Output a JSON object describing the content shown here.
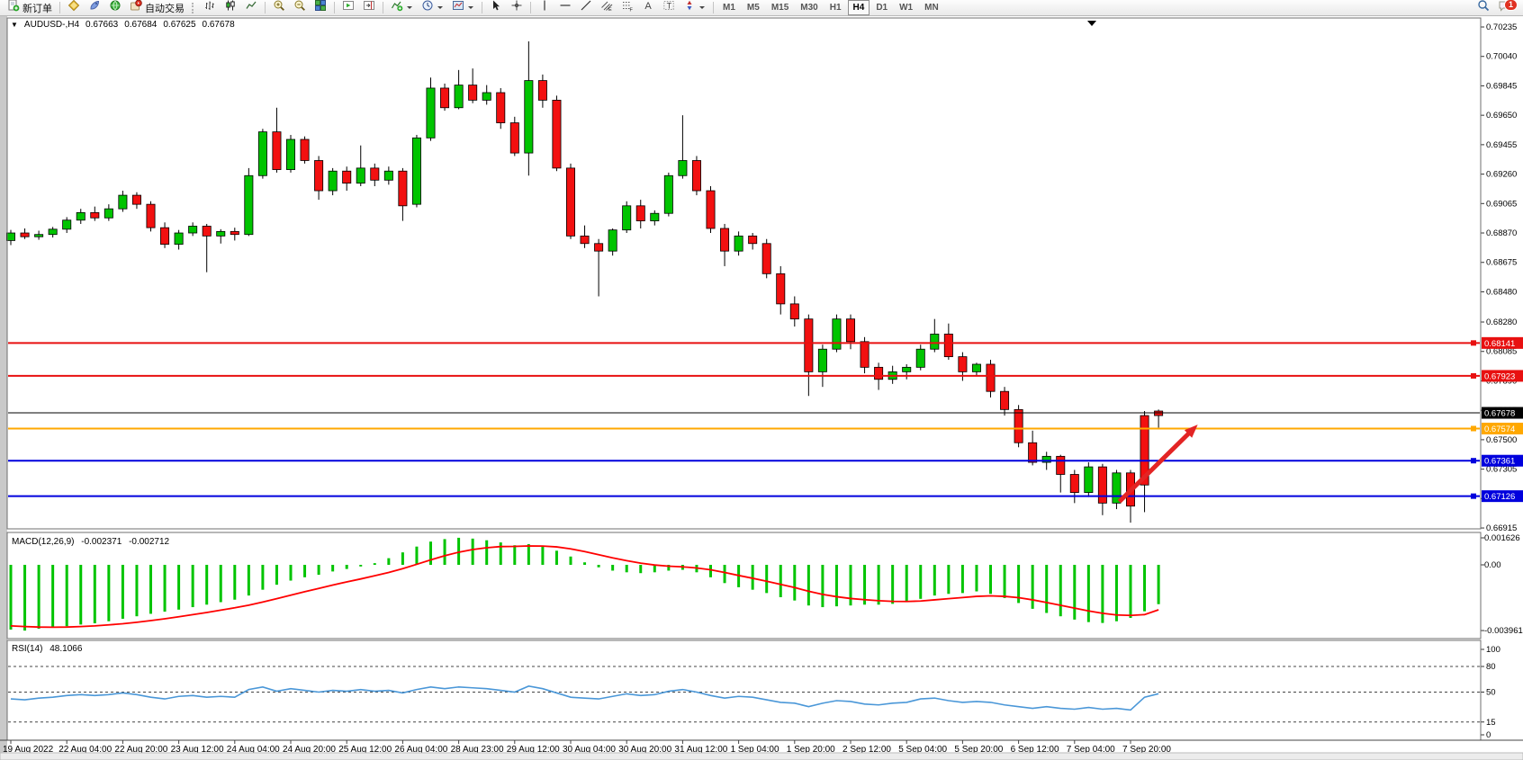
{
  "toolbar": {
    "new_order_label": "新订单",
    "auto_trading_label": "自动交易",
    "timeframes": [
      "M1",
      "M5",
      "M15",
      "M30",
      "H1",
      "H4",
      "D1",
      "W1",
      "MN"
    ],
    "active_timeframe": "H4",
    "notification_count": "1"
  },
  "chart_header": {
    "symbol_period": "AUDUSD-,H4",
    "open": "0.67663",
    "high": "0.67684",
    "low": "0.67625",
    "close": "0.67678"
  },
  "macd_panel": {
    "label": "MACD(12,26,9)",
    "value_main": "-0.002371",
    "value_signal": "-0.002712"
  },
  "rsi_panel": {
    "label": "RSI(14)",
    "value": "48.1066"
  },
  "chart_data": {
    "type": "candlestick",
    "symbol": "AUDUSD-",
    "timeframe": "H4",
    "ohlc_current": {
      "open": 0.67663,
      "high": 0.67684,
      "low": 0.67625,
      "close": 0.67678
    },
    "bid_price": 0.67678,
    "price_axis": {
      "ticks": [
        0.70235,
        0.7004,
        0.69845,
        0.6965,
        0.69455,
        0.6926,
        0.69065,
        0.6887,
        0.68675,
        0.6848,
        0.6828,
        0.68085,
        0.6789,
        0.67695,
        0.675,
        0.67305,
        0.6711,
        0.66915
      ],
      "min": 0.66915,
      "max": 0.70235
    },
    "horizontal_lines": [
      {
        "price": 0.68141,
        "label": "0.68141",
        "color": "#e81010"
      },
      {
        "price": 0.67923,
        "label": "0.67923",
        "color": "#e81010"
      },
      {
        "price": 0.67574,
        "label": "0.67574",
        "color": "#ffa800"
      },
      {
        "price": 0.67361,
        "label": "0.67361",
        "color": "#0000dd"
      },
      {
        "price": 0.67126,
        "label": "0.67126",
        "color": "#0000dd"
      }
    ],
    "candles": [
      [
        0.6882,
        0.6889,
        0.6879,
        0.6887
      ],
      [
        0.6887,
        0.689,
        0.6883,
        0.68845
      ],
      [
        0.68845,
        0.68885,
        0.68825,
        0.6886
      ],
      [
        0.6886,
        0.6891,
        0.6884,
        0.68895
      ],
      [
        0.68895,
        0.68975,
        0.6887,
        0.68955
      ],
      [
        0.68955,
        0.6903,
        0.6893,
        0.69005
      ],
      [
        0.69005,
        0.69045,
        0.6895,
        0.6897
      ],
      [
        0.6897,
        0.6906,
        0.6895,
        0.6903
      ],
      [
        0.6903,
        0.6915,
        0.6901,
        0.6912
      ],
      [
        0.6912,
        0.6914,
        0.6903,
        0.6906
      ],
      [
        0.6906,
        0.6908,
        0.6888,
        0.68905
      ],
      [
        0.68905,
        0.6894,
        0.6877,
        0.68795
      ],
      [
        0.68795,
        0.6889,
        0.6876,
        0.6887
      ],
      [
        0.6887,
        0.6894,
        0.6885,
        0.68915
      ],
      [
        0.68915,
        0.6893,
        0.6861,
        0.6885
      ],
      [
        0.6885,
        0.68895,
        0.688,
        0.6888
      ],
      [
        0.6888,
        0.68905,
        0.6882,
        0.6886
      ],
      [
        0.6886,
        0.693,
        0.6885,
        0.6925
      ],
      [
        0.6925,
        0.6956,
        0.6923,
        0.6954
      ],
      [
        0.6954,
        0.697,
        0.6927,
        0.6929
      ],
      [
        0.6929,
        0.6952,
        0.6927,
        0.6949
      ],
      [
        0.6949,
        0.6951,
        0.6933,
        0.6935
      ],
      [
        0.6935,
        0.6938,
        0.6909,
        0.6915
      ],
      [
        0.6915,
        0.693,
        0.6912,
        0.6928
      ],
      [
        0.6928,
        0.6931,
        0.6915,
        0.692
      ],
      [
        0.692,
        0.6945,
        0.6918,
        0.693
      ],
      [
        0.693,
        0.6933,
        0.6918,
        0.6922
      ],
      [
        0.6922,
        0.6931,
        0.6919,
        0.6928
      ],
      [
        0.6928,
        0.693,
        0.6895,
        0.6905
      ],
      [
        0.6906,
        0.6952,
        0.6904,
        0.695
      ],
      [
        0.695,
        0.699,
        0.6948,
        0.6983
      ],
      [
        0.6983,
        0.6986,
        0.6968,
        0.697
      ],
      [
        0.697,
        0.6995,
        0.6969,
        0.6985
      ],
      [
        0.6985,
        0.6996,
        0.6973,
        0.6975
      ],
      [
        0.6975,
        0.6985,
        0.6972,
        0.698
      ],
      [
        0.698,
        0.6983,
        0.6956,
        0.696
      ],
      [
        0.696,
        0.6964,
        0.6938,
        0.694
      ],
      [
        0.694,
        0.7014,
        0.6925,
        0.6988
      ],
      [
        0.6988,
        0.6992,
        0.697,
        0.6975
      ],
      [
        0.6975,
        0.6978,
        0.6928,
        0.693
      ],
      [
        0.693,
        0.6933,
        0.6883,
        0.6885
      ],
      [
        0.6885,
        0.6892,
        0.6877,
        0.688
      ],
      [
        0.688,
        0.6883,
        0.6845,
        0.6875
      ],
      [
        0.6875,
        0.689,
        0.6872,
        0.6889
      ],
      [
        0.6889,
        0.6908,
        0.6887,
        0.6905
      ],
      [
        0.6905,
        0.6909,
        0.689,
        0.6895
      ],
      [
        0.6895,
        0.6902,
        0.6892,
        0.69
      ],
      [
        0.69,
        0.6927,
        0.6898,
        0.6925
      ],
      [
        0.6925,
        0.6965,
        0.6923,
        0.6935
      ],
      [
        0.6935,
        0.6938,
        0.6912,
        0.6915
      ],
      [
        0.6915,
        0.6918,
        0.6887,
        0.689
      ],
      [
        0.689,
        0.6893,
        0.6865,
        0.6875
      ],
      [
        0.6875,
        0.6888,
        0.6872,
        0.6885
      ],
      [
        0.6885,
        0.6887,
        0.6876,
        0.688
      ],
      [
        0.688,
        0.6883,
        0.6857,
        0.686
      ],
      [
        0.686,
        0.6865,
        0.6833,
        0.684
      ],
      [
        0.684,
        0.6845,
        0.6825,
        0.683
      ],
      [
        0.683,
        0.6833,
        0.6779,
        0.6795
      ],
      [
        0.6795,
        0.6813,
        0.6785,
        0.681
      ],
      [
        0.681,
        0.6833,
        0.6808,
        0.683
      ],
      [
        0.683,
        0.6833,
        0.681,
        0.6815
      ],
      [
        0.6815,
        0.6818,
        0.6794,
        0.6798
      ],
      [
        0.6798,
        0.6801,
        0.6783,
        0.679
      ],
      [
        0.679,
        0.6799,
        0.6787,
        0.6795
      ],
      [
        0.6795,
        0.68,
        0.679,
        0.6798
      ],
      [
        0.6798,
        0.6813,
        0.6796,
        0.681
      ],
      [
        0.681,
        0.683,
        0.6808,
        0.682
      ],
      [
        0.682,
        0.6827,
        0.6803,
        0.6805
      ],
      [
        0.6805,
        0.6808,
        0.6789,
        0.6795
      ],
      [
        0.6795,
        0.6801,
        0.6792,
        0.68
      ],
      [
        0.68,
        0.6803,
        0.6778,
        0.6782
      ],
      [
        0.6782,
        0.6785,
        0.6766,
        0.677
      ],
      [
        0.677,
        0.6773,
        0.6745,
        0.6748
      ],
      [
        0.6748,
        0.6756,
        0.6733,
        0.6735
      ],
      [
        0.6735,
        0.6742,
        0.673,
        0.6739
      ],
      [
        0.6739,
        0.674,
        0.6715,
        0.6727
      ],
      [
        0.6727,
        0.673,
        0.6708,
        0.6715
      ],
      [
        0.6715,
        0.6735,
        0.6712,
        0.6732
      ],
      [
        0.6732,
        0.6734,
        0.67,
        0.6708
      ],
      [
        0.6708,
        0.673,
        0.6704,
        0.6728
      ],
      [
        0.6728,
        0.673,
        0.6695,
        0.6706
      ],
      [
        0.6766,
        0.6769,
        0.6702,
        0.672
      ],
      [
        0.6769,
        0.677,
        0.6758,
        0.6766
      ]
    ],
    "time_labels": [
      "19 Aug 2022",
      "22 Aug 04:00",
      "22 Aug 20:00",
      "23 Aug 12:00",
      "24 Aug 04:00",
      "24 Aug 20:00",
      "25 Aug 12:00",
      "26 Aug 04:00",
      "28 Aug 23:00",
      "29 Aug 12:00",
      "30 Aug 04:00",
      "30 Aug 20:00",
      "31 Aug 12:00",
      "1 Sep 04:00",
      "1 Sep 20:00",
      "2 Sep 12:00",
      "5 Sep 04:00",
      "5 Sep 20:00",
      "6 Sep 12:00",
      "7 Sep 04:00",
      "7 Sep 20:00"
    ],
    "label_step": 4,
    "macd": {
      "params": "12,26,9",
      "histogram": [
        -0.0039,
        -0.00396,
        -0.00385,
        -0.00378,
        -0.0037,
        -0.0036,
        -0.00352,
        -0.0034,
        -0.00325,
        -0.0031,
        -0.00295,
        -0.00282,
        -0.0027,
        -0.00255,
        -0.0024,
        -0.00225,
        -0.0021,
        -0.00185,
        -0.0015,
        -0.0012,
        -0.00095,
        -0.00075,
        -0.0006,
        -0.0004,
        -0.00025,
        -0.0001,
        0.0001,
        0.0004,
        0.00075,
        0.0011,
        0.0014,
        0.00155,
        0.00163,
        0.00158,
        0.00148,
        0.00135,
        0.00118,
        0.00125,
        0.0011,
        0.00085,
        0.0005,
        0.00015,
        -0.00015,
        -0.00035,
        -0.00045,
        -0.0005,
        -0.00045,
        -0.00035,
        -0.0003,
        -0.00045,
        -0.00075,
        -0.0011,
        -0.00135,
        -0.0015,
        -0.0017,
        -0.00195,
        -0.00215,
        -0.00245,
        -0.00255,
        -0.0025,
        -0.00245,
        -0.0024,
        -0.0024,
        -0.00235,
        -0.00225,
        -0.00205,
        -0.00185,
        -0.00175,
        -0.0017,
        -0.0016,
        -0.00175,
        -0.002,
        -0.0023,
        -0.00265,
        -0.0029,
        -0.0031,
        -0.0033,
        -0.00345,
        -0.0035,
        -0.0034,
        -0.0032,
        -0.0028,
        -0.00237
      ],
      "signal": [
        -0.00368,
        -0.00372,
        -0.00375,
        -0.00376,
        -0.00375,
        -0.00372,
        -0.00368,
        -0.00362,
        -0.00355,
        -0.00346,
        -0.00336,
        -0.00325,
        -0.00313,
        -0.003,
        -0.00287,
        -0.00273,
        -0.00259,
        -0.00243,
        -0.00224,
        -0.00204,
        -0.00183,
        -0.00162,
        -0.00142,
        -0.00122,
        -0.00103,
        -0.00085,
        -0.00066,
        -0.00046,
        -0.00023,
        3e-05,
        0.0003,
        0.00055,
        0.00076,
        0.00092,
        0.00103,
        0.0011,
        0.00111,
        0.00114,
        0.00113,
        0.00108,
        0.00096,
        0.0008,
        0.00061,
        0.00042,
        0.00025,
        0.0001,
        -1e-05,
        -8e-05,
        -0.00012,
        -0.00019,
        -0.0003,
        -0.00046,
        -0.00064,
        -0.00081,
        -0.00099,
        -0.00118,
        -0.00137,
        -0.00159,
        -0.00178,
        -0.00192,
        -0.00203,
        -0.0021,
        -0.00216,
        -0.0022,
        -0.00221,
        -0.00218,
        -0.00211,
        -0.00204,
        -0.00197,
        -0.0019,
        -0.00187,
        -0.0019,
        -0.00198,
        -0.00211,
        -0.00227,
        -0.00244,
        -0.00261,
        -0.00278,
        -0.00292,
        -0.00302,
        -0.00305,
        -0.003,
        -0.00271
      ],
      "scale_labels": [
        {
          "v": 0.001626,
          "t": "0.001626"
        },
        {
          "v": 0,
          "t": "0.00"
        },
        {
          "v": -0.003961,
          "t": "-0.003961"
        }
      ],
      "colors": {
        "histogram": "#00c400",
        "signal": "#ff0000"
      }
    },
    "rsi": {
      "period": 14,
      "values": [
        42,
        41,
        43,
        44,
        46,
        47,
        46,
        47,
        49,
        47,
        44,
        42,
        45,
        46,
        44,
        45,
        44,
        53,
        56,
        51,
        54,
        52,
        50,
        52,
        51,
        53,
        51,
        52,
        49,
        53,
        56,
        54,
        56,
        55,
        54,
        52,
        50,
        57,
        54,
        49,
        44,
        43,
        42,
        45,
        48,
        46,
        47,
        51,
        53,
        50,
        46,
        43,
        45,
        44,
        41,
        38,
        37,
        33,
        37,
        40,
        39,
        36,
        35,
        37,
        38,
        42,
        43,
        40,
        38,
        39,
        38,
        35,
        33,
        31,
        33,
        31,
        30,
        32,
        30,
        31,
        29,
        44,
        48.1
      ],
      "levels": [
        100,
        80,
        50,
        15,
        0
      ],
      "dashed_levels": [
        80,
        50,
        15
      ],
      "color": "#4a97d8"
    },
    "trend_arrow": {
      "from_index": 79.2,
      "from_price": 0.6709,
      "to_index": 84.8,
      "to_price": 0.676,
      "color": "#e32424"
    },
    "colors": {
      "bull": "#00c400",
      "bear": "#f21010",
      "outline": "#000000",
      "bid_line": "#000000"
    }
  }
}
